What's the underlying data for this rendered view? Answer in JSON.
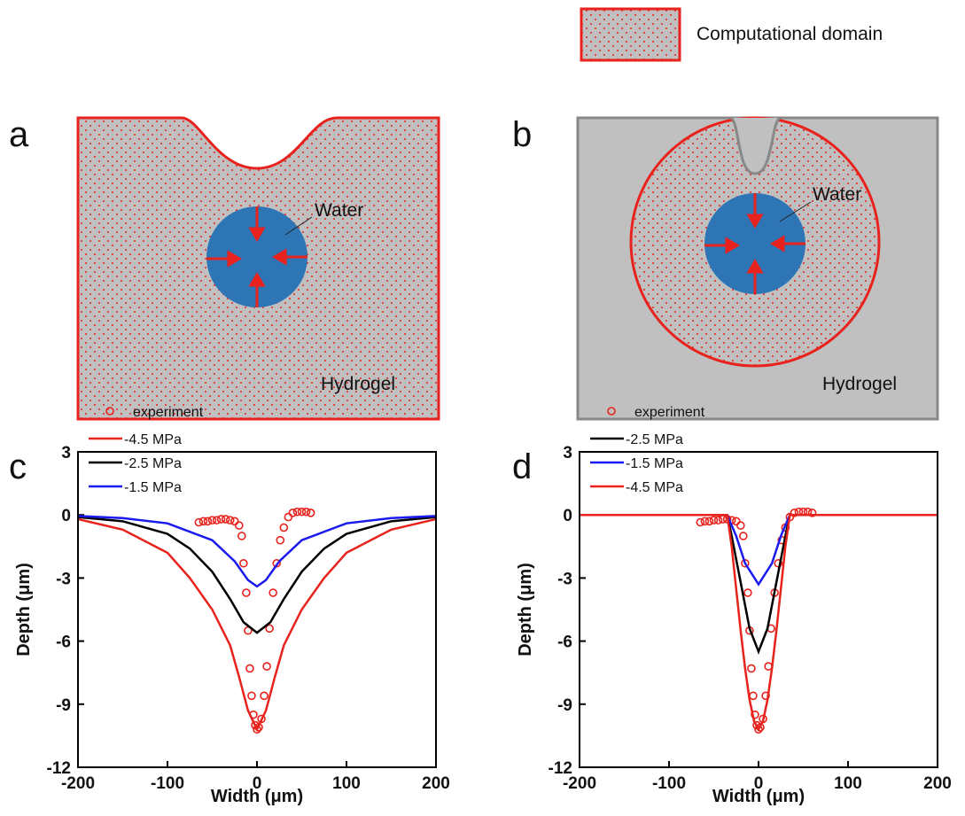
{
  "legend_box": "Computational domain",
  "panels": {
    "a": {
      "label": "a",
      "inner": "Water",
      "outer": "Hydrogel"
    },
    "b": {
      "label": "b",
      "inner": "Water",
      "outer": "Hydrogel"
    }
  },
  "chart_data": [
    {
      "type": "line",
      "label": "c",
      "x_label": "Width (μm)",
      "y_label": "Depth (μm)",
      "xlim": [
        -200,
        200
      ],
      "xticks": [
        -200,
        -100,
        0,
        100,
        200
      ],
      "ylim": [
        -12,
        3
      ],
      "yticks": [
        -12,
        -9,
        -6,
        -3,
        0,
        3
      ],
      "series": [
        {
          "name": "experiment",
          "color": "#e8221c",
          "marker": "circle",
          "x": [
            -65,
            -60,
            -55,
            -50,
            -45,
            -40,
            -35,
            -30,
            -25,
            -20,
            -17,
            -15,
            -12,
            -10,
            -8,
            -6,
            -4,
            -2,
            0,
            2,
            5,
            8,
            11,
            14,
            18,
            22,
            26,
            30,
            35,
            40,
            45,
            50,
            55,
            60
          ],
          "values": [
            -0.35,
            -0.3,
            -0.3,
            -0.25,
            -0.25,
            -0.2,
            -0.2,
            -0.25,
            -0.3,
            -0.5,
            -1,
            -2.3,
            -3.7,
            -5.5,
            -7.3,
            -8.6,
            -9.5,
            -10,
            -10.2,
            -10.1,
            -9.7,
            -8.6,
            -7.2,
            -5.4,
            -3.7,
            -2.3,
            -1.2,
            -0.6,
            -0.1,
            0.1,
            0.15,
            0.15,
            0.15,
            0.1
          ]
        },
        {
          "name": "-4.5 MPa",
          "color": "#e8221c",
          "x": [
            -200,
            -150,
            -100,
            -75,
            -50,
            -30,
            -20,
            -10,
            0,
            10,
            20,
            30,
            50,
            75,
            100,
            150,
            200
          ],
          "values": [
            -0.2,
            -0.7,
            -1.8,
            -3,
            -4.5,
            -6.2,
            -7.7,
            -9.3,
            -10.2,
            -9.3,
            -7.7,
            -6.2,
            -4.5,
            -3,
            -1.8,
            -0.7,
            -0.2
          ]
        },
        {
          "name": "-2.5 MPa",
          "color": "#000000",
          "x": [
            -200,
            -150,
            -100,
            -75,
            -50,
            -30,
            -15,
            0,
            15,
            30,
            50,
            75,
            100,
            150,
            200
          ],
          "values": [
            -0.1,
            -0.3,
            -0.9,
            -1.6,
            -2.7,
            -4,
            -5.1,
            -5.6,
            -5.1,
            -4,
            -2.7,
            -1.6,
            -0.9,
            -0.3,
            -0.1
          ]
        },
        {
          "name": "-1.5 MPa",
          "color": "#1a1aee",
          "x": [
            -200,
            -150,
            -100,
            -50,
            -25,
            -10,
            0,
            10,
            25,
            50,
            100,
            150,
            200
          ],
          "values": [
            -0.05,
            -0.15,
            -0.4,
            -1.2,
            -2.2,
            -3.1,
            -3.4,
            -3.1,
            -2.2,
            -1.2,
            -0.4,
            -0.15,
            -0.05
          ]
        }
      ]
    },
    {
      "type": "line",
      "label": "d",
      "x_label": "Width (μm)",
      "y_label": "Depth (μm)",
      "xlim": [
        -200,
        200
      ],
      "xticks": [
        -200,
        -100,
        0,
        100,
        200
      ],
      "ylim": [
        -12,
        3
      ],
      "yticks": [
        -12,
        -9,
        -6,
        -3,
        0,
        3
      ],
      "series": [
        {
          "name": "experiment",
          "color": "#e8221c",
          "marker": "circle",
          "x": [
            -65,
            -60,
            -55,
            -50,
            -45,
            -40,
            -35,
            -30,
            -25,
            -20,
            -17,
            -15,
            -12,
            -10,
            -8,
            -6,
            -4,
            -2,
            0,
            2,
            5,
            8,
            11,
            14,
            18,
            22,
            26,
            30,
            35,
            40,
            45,
            50,
            55,
            60
          ],
          "values": [
            -0.35,
            -0.3,
            -0.3,
            -0.25,
            -0.25,
            -0.2,
            -0.2,
            -0.25,
            -0.3,
            -0.5,
            -1,
            -2.3,
            -3.7,
            -5.5,
            -7.3,
            -8.6,
            -9.5,
            -10,
            -10.2,
            -10.1,
            -9.7,
            -8.6,
            -7.2,
            -5.4,
            -3.7,
            -2.3,
            -1.2,
            -0.6,
            -0.1,
            0.1,
            0.15,
            0.15,
            0.15,
            0.1
          ]
        },
        {
          "name": "-2.5 MPa",
          "color": "#000000",
          "x": [
            -200,
            -35,
            -30,
            -20,
            -10,
            0,
            10,
            20,
            30,
            35,
            200
          ],
          "values": [
            0,
            0,
            -1,
            -3.2,
            -5.4,
            -6.5,
            -5.4,
            -3.2,
            -1,
            0,
            0
          ]
        },
        {
          "name": "-1.5 MPa",
          "color": "#1a1aee",
          "x": [
            -200,
            -35,
            -25,
            -15,
            0,
            15,
            25,
            35,
            200
          ],
          "values": [
            0,
            0,
            -1,
            -2.3,
            -3.3,
            -2.3,
            -1,
            0,
            0
          ]
        },
        {
          "name": "-4.5 MPa",
          "color": "#e8221c",
          "x": [
            -200,
            -35,
            -30,
            -25,
            -20,
            -15,
            -10,
            -5,
            0,
            5,
            10,
            15,
            20,
            25,
            30,
            35,
            200
          ],
          "values": [
            0,
            0,
            -1.5,
            -3.5,
            -5.5,
            -7.3,
            -8.8,
            -9.8,
            -10.2,
            -9.8,
            -8.8,
            -7.3,
            -5.5,
            -3.5,
            -1.5,
            0,
            0
          ]
        }
      ]
    }
  ]
}
